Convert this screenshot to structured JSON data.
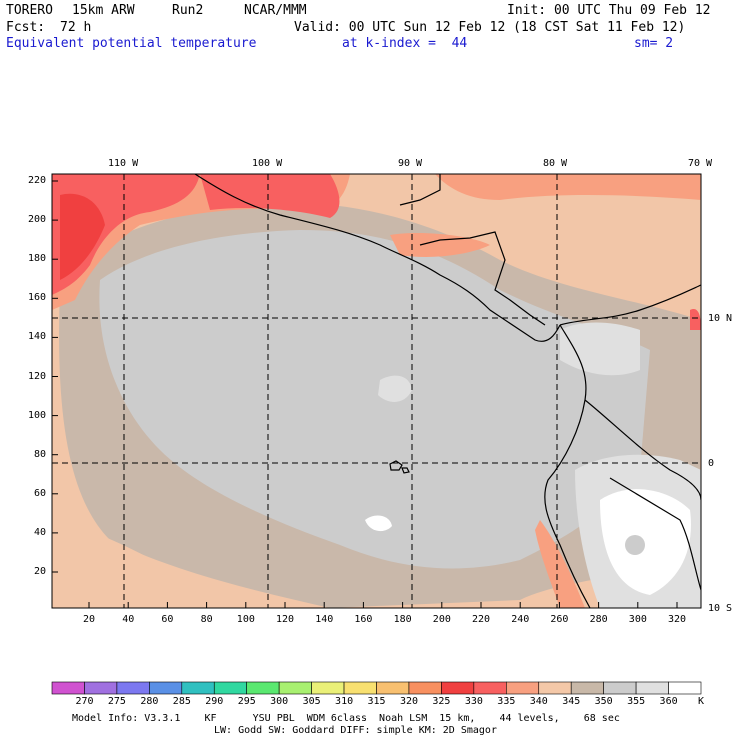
{
  "header": {
    "model": "TORERO",
    "resolution": "15km ARW",
    "run": "Run2",
    "org": "NCAR/MMM",
    "init": "Init: 00 UTC Thu 09 Feb 12",
    "fcst_label": "Fcst:",
    "fcst_value": "72 h",
    "valid": "Valid: 00 UTC Sun 12 Feb 12 (18 CST Sat 11 Feb 12)",
    "field": "Equivalent potential temperature",
    "level": "at k-index =  44",
    "smooth": "sm= 2"
  },
  "map": {
    "lon_labels": [
      "110 W",
      "100 W",
      "90 W",
      "80 W",
      "70 W"
    ],
    "lat_labels": [
      "10 N",
      "0",
      "10 S"
    ],
    "y_ticks": [
      "20",
      "40",
      "60",
      "80",
      "100",
      "120",
      "140",
      "160",
      "180",
      "200",
      "220"
    ],
    "x_ticks": [
      "20",
      "40",
      "60",
      "80",
      "100",
      "120",
      "140",
      "160",
      "180",
      "200",
      "220",
      "240",
      "260",
      "280",
      "300",
      "320"
    ]
  },
  "legend": {
    "values": [
      "270",
      "275",
      "280",
      "285",
      "290",
      "295",
      "300",
      "305",
      "310",
      "315",
      "320",
      "325",
      "330",
      "335",
      "340",
      "345",
      "350",
      "355",
      "360"
    ],
    "unit": "K",
    "colors": [
      "#d052d0",
      "#a070e0",
      "#7c78f0",
      "#5a90e6",
      "#30c0c0",
      "#30d8a0",
      "#5ae870",
      "#a8f070",
      "#eaf078",
      "#f8e070",
      "#f8c070",
      "#f89060",
      "#f04040",
      "#f86060",
      "#f8a080",
      "#f4c8a8",
      "#c8b8a8",
      "#cccccc",
      "#e0e0e0",
      "#ffffff"
    ]
  },
  "footer": {
    "line1": "Model Info: V3.3.1    KF      YSU PBL  WDM 6class  Noah LSM  15 km,    44 levels,    68 sec",
    "line2": "LW: Godd SW: Goddard DIFF: simple KM: 2D Smagor"
  }
}
